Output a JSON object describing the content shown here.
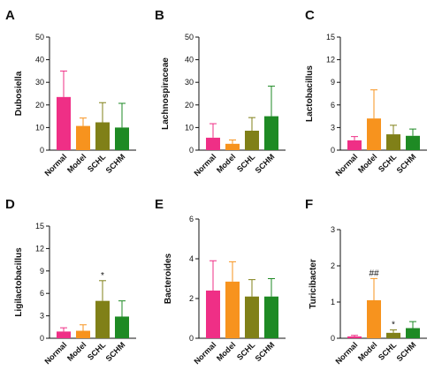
{
  "figure": {
    "colors": {
      "Normal": "#ef2f86",
      "Model": "#f7931e",
      "SCHL": "#808018",
      "SCHM": "#1e8a24"
    }
  },
  "chart_data": [
    {
      "panel": "A",
      "type": "bar",
      "ylabel": "Dubosiella",
      "categories": [
        "Normal",
        "Model",
        "SCHL",
        "SCHM"
      ],
      "values": [
        23.5,
        10.7,
        12.3,
        10.0
      ],
      "errors": [
        11.5,
        3.5,
        8.7,
        10.7
      ],
      "ylim": [
        0,
        50
      ],
      "yticks": [
        0,
        10,
        20,
        30,
        40,
        50
      ],
      "annotations": []
    },
    {
      "panel": "B",
      "type": "bar",
      "ylabel": "Lachnospiraceae",
      "categories": [
        "Normal",
        "Model",
        "SCHL",
        "SCHM"
      ],
      "values": [
        5.5,
        2.8,
        8.6,
        15.0
      ],
      "errors": [
        6.2,
        1.7,
        5.8,
        13.3
      ],
      "ylim": [
        0,
        50
      ],
      "yticks": [
        0,
        10,
        20,
        30,
        40,
        50
      ],
      "annotations": []
    },
    {
      "panel": "C",
      "type": "bar",
      "ylabel": "Lactobacillus",
      "categories": [
        "Normal",
        "Model",
        "SCHL",
        "SCHM"
      ],
      "values": [
        1.3,
        4.2,
        2.1,
        1.9
      ],
      "errors": [
        0.5,
        3.8,
        1.2,
        0.9
      ],
      "ylim": [
        0,
        15
      ],
      "yticks": [
        0,
        3,
        6,
        9,
        12,
        15
      ],
      "annotations": []
    },
    {
      "panel": "D",
      "type": "bar",
      "ylabel": "Ligilactobacillus",
      "categories": [
        "Normal",
        "Model",
        "SCHL",
        "SCHM"
      ],
      "values": [
        0.9,
        1.0,
        5.0,
        2.9
      ],
      "errors": [
        0.5,
        0.8,
        2.7,
        2.1
      ],
      "ylim": [
        0,
        15
      ],
      "yticks": [
        0,
        3,
        6,
        9,
        12,
        15
      ],
      "annotations": [
        {
          "category": "SCHL",
          "text": "*"
        }
      ]
    },
    {
      "panel": "E",
      "type": "bar",
      "ylabel": "Bacteroides",
      "categories": [
        "Normal",
        "Model",
        "SCHL",
        "SCHM"
      ],
      "values": [
        2.4,
        2.85,
        2.1,
        2.1
      ],
      "errors": [
        1.5,
        1.0,
        0.85,
        0.9
      ],
      "ylim": [
        0,
        6
      ],
      "yticks": [
        0,
        2,
        4,
        6
      ],
      "annotations": []
    },
    {
      "panel": "F",
      "type": "bar",
      "ylabel": "Turicibacter",
      "categories": [
        "Normal",
        "Model",
        "SCHL",
        "SCHM"
      ],
      "values": [
        0.05,
        1.05,
        0.15,
        0.28
      ],
      "errors": [
        0.03,
        0.6,
        0.08,
        0.18
      ],
      "ylim": [
        0,
        3
      ],
      "yticks": [
        0,
        1,
        2,
        3
      ],
      "annotations": [
        {
          "category": "Model",
          "text": "##"
        },
        {
          "category": "SCHL",
          "text": "*"
        }
      ]
    }
  ]
}
